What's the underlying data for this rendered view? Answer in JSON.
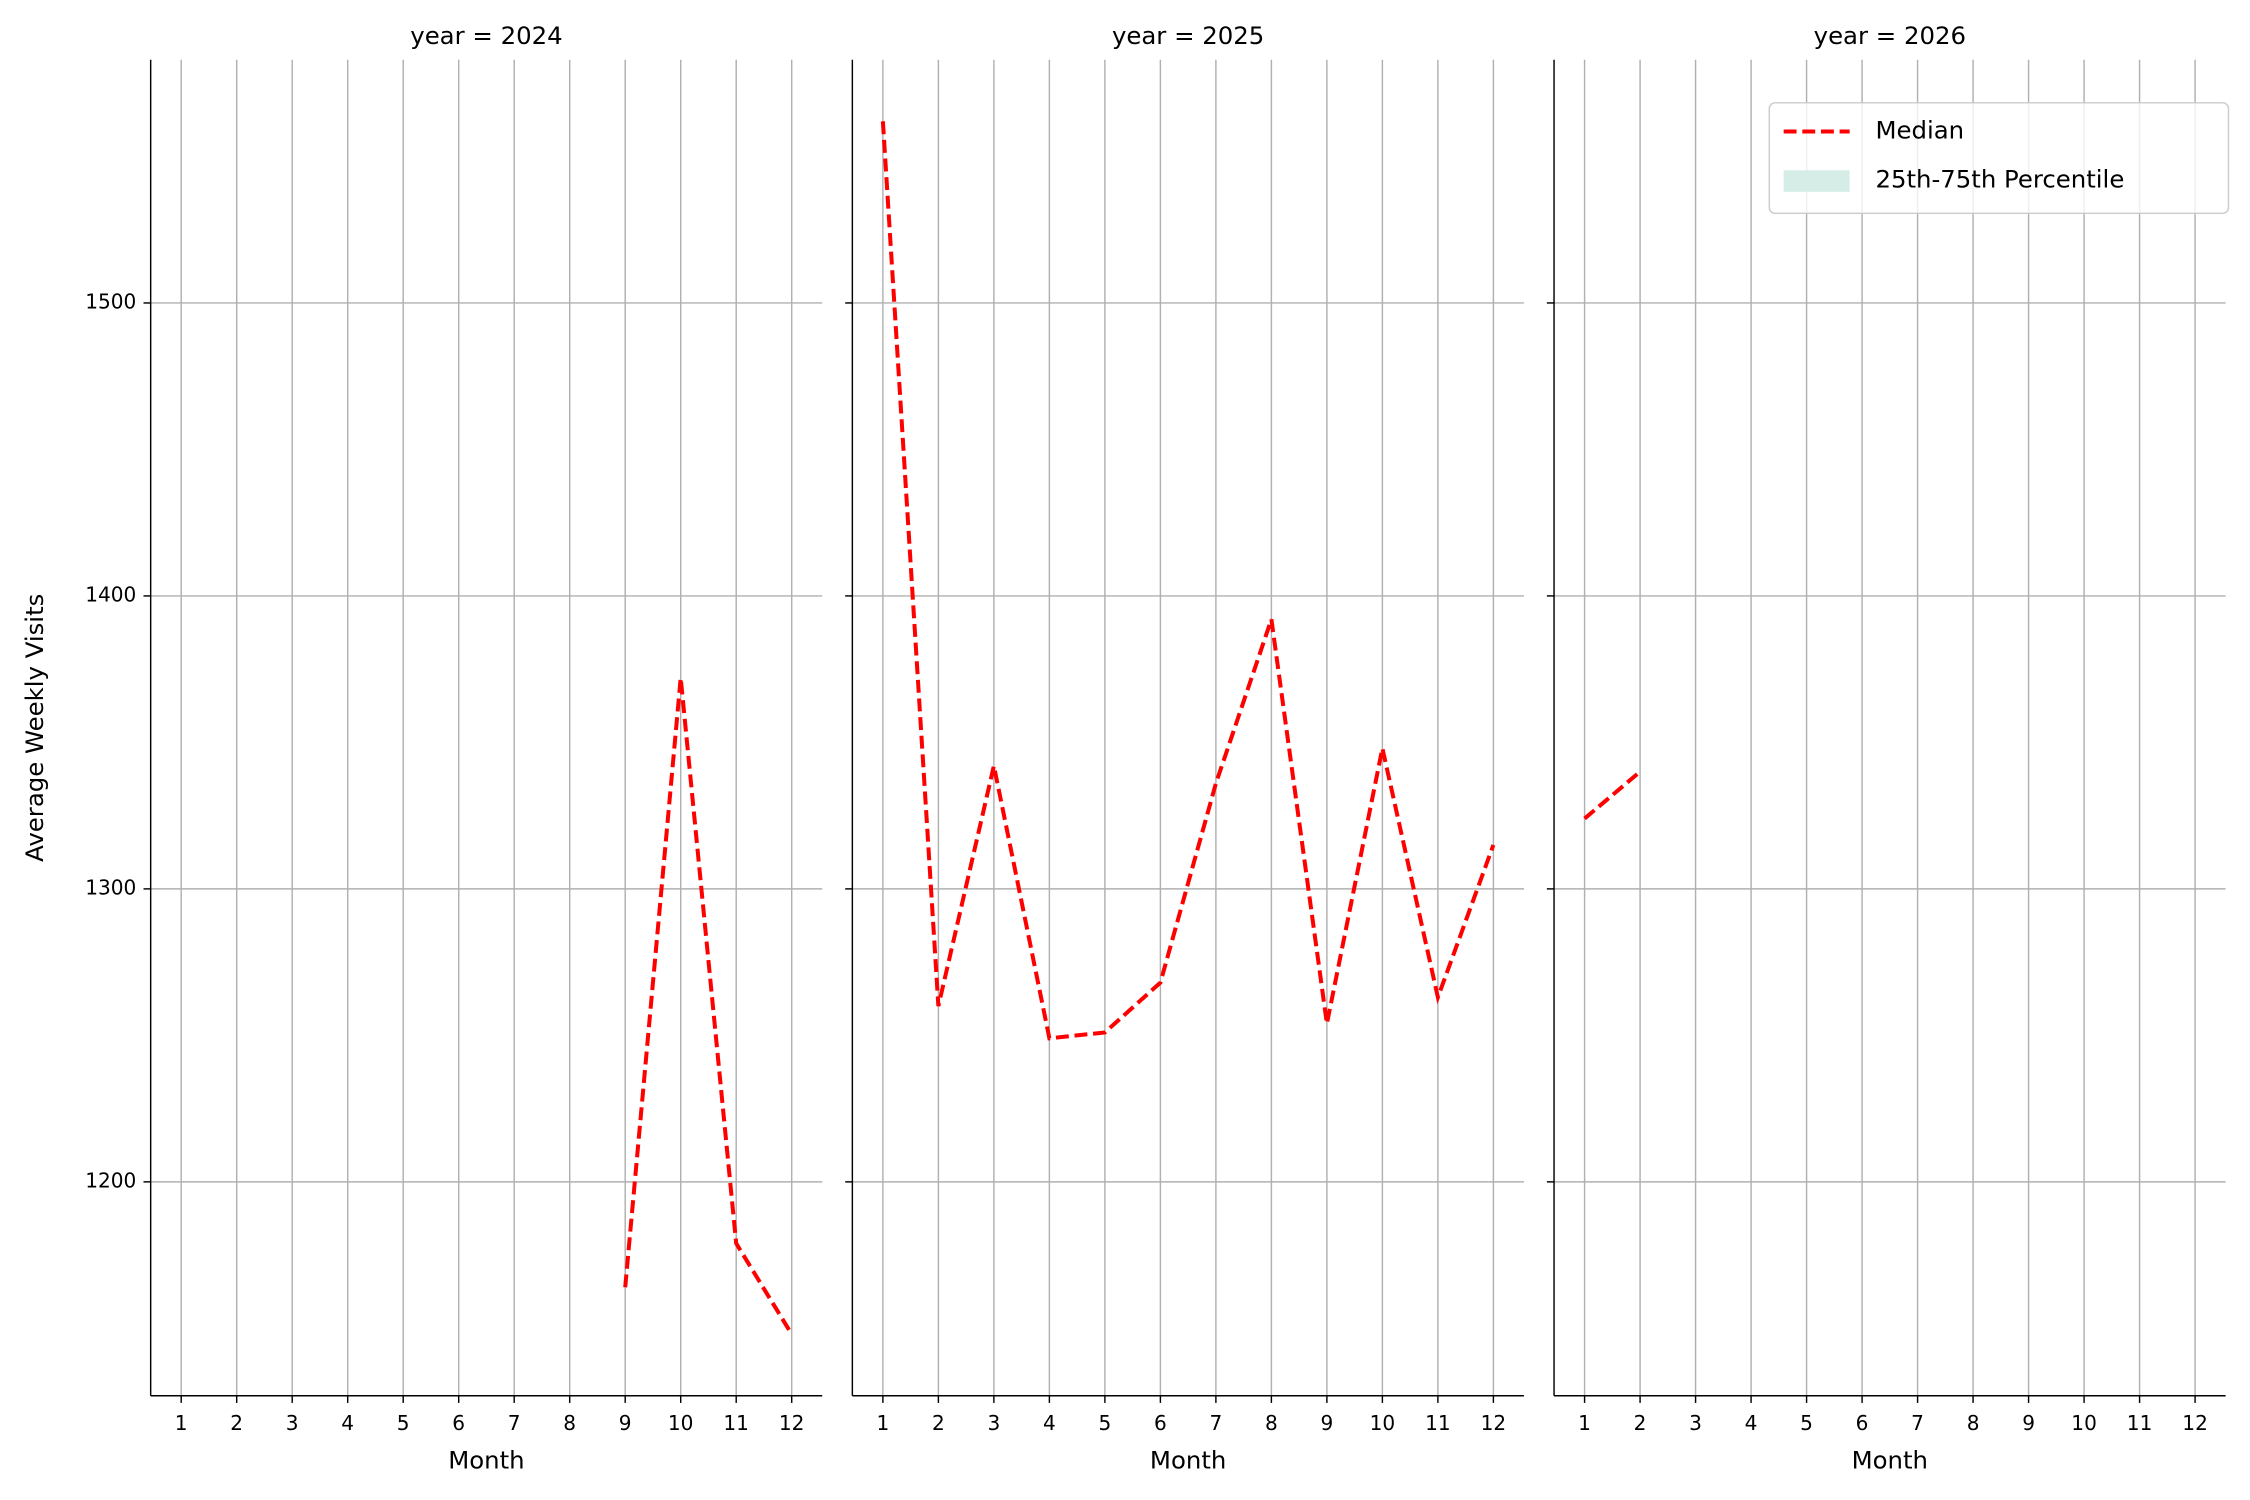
{
  "chart_data": [
    {
      "type": "line",
      "title": "year = 2024",
      "xlabel": "Month",
      "ylabel": "Average Weekly Visits",
      "x": [
        1,
        2,
        3,
        4,
        5,
        6,
        7,
        8,
        9,
        10,
        11,
        12
      ],
      "xlim": [
        0.45,
        12.55
      ],
      "xticks": [
        1,
        2,
        3,
        4,
        5,
        6,
        7,
        8,
        9,
        10,
        11,
        12
      ],
      "ylim": [
        1127,
        1583
      ],
      "yticks": [
        1200,
        1300,
        1400,
        1500
      ],
      "grid": true,
      "series": [
        {
          "name": "Median",
          "color": "#ff0000",
          "dash": true,
          "values": [
            null,
            null,
            null,
            null,
            null,
            null,
            null,
            null,
            1164,
            1372,
            1179,
            1148
          ]
        }
      ]
    },
    {
      "type": "line",
      "title": "year = 2025",
      "xlabel": "Month",
      "x": [
        1,
        2,
        3,
        4,
        5,
        6,
        7,
        8,
        9,
        10,
        11,
        12
      ],
      "xlim": [
        0.45,
        12.55
      ],
      "xticks": [
        1,
        2,
        3,
        4,
        5,
        6,
        7,
        8,
        9,
        10,
        11,
        12
      ],
      "ylim": [
        1127,
        1583
      ],
      "yticks": [
        1200,
        1300,
        1400,
        1500
      ],
      "grid": true,
      "series": [
        {
          "name": "Median",
          "color": "#ff0000",
          "dash": true,
          "values": [
            1562,
            1260,
            1342,
            1249,
            1251,
            1268,
            1336,
            1392,
            1254,
            1348,
            1263,
            1315
          ]
        }
      ]
    },
    {
      "type": "line",
      "title": "year = 2026",
      "xlabel": "Month",
      "x": [
        1,
        2,
        3,
        4,
        5,
        6,
        7,
        8,
        9,
        10,
        11,
        12
      ],
      "xlim": [
        0.45,
        12.55
      ],
      "xticks": [
        1,
        2,
        3,
        4,
        5,
        6,
        7,
        8,
        9,
        10,
        11,
        12
      ],
      "ylim": [
        1127,
        1583
      ],
      "yticks": [
        1200,
        1300,
        1400,
        1500
      ],
      "grid": true,
      "series": [
        {
          "name": "Median",
          "color": "#ff0000",
          "dash": true,
          "values": [
            1324,
            1340,
            null,
            null,
            null,
            null,
            null,
            null,
            null,
            null,
            null,
            null
          ]
        }
      ],
      "legend": {
        "loc": "upper right",
        "entries": [
          {
            "label": "Median",
            "color": "#ff0000",
            "style": "dashed"
          },
          {
            "label": "25th-75th Percentile",
            "color": "#d5ede6",
            "style": "patch"
          }
        ]
      }
    }
  ]
}
